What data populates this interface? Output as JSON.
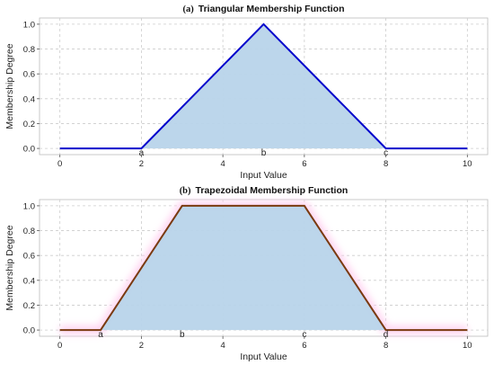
{
  "chart_data": [
    {
      "type": "line",
      "panel_label": "(a)",
      "title": "Triangular Membership Function",
      "xlabel": "Input Value",
      "ylabel": "Membership Degree",
      "xlim": [
        -0.5,
        10.5
      ],
      "ylim": [
        -0.05,
        1.05
      ],
      "xticks": [
        0,
        2,
        4,
        6,
        8,
        10
      ],
      "yticks": [
        0.0,
        0.2,
        0.4,
        0.6,
        0.8,
        1.0
      ],
      "grid": true,
      "x": [
        0,
        2,
        5,
        8,
        10
      ],
      "y": [
        0,
        0,
        1,
        0,
        0
      ],
      "line_color": "#0000cc",
      "fill_color": "#b8d4ea",
      "params": [
        {
          "name": "a",
          "x": 2
        },
        {
          "name": "b",
          "x": 5
        },
        {
          "name": "c",
          "x": 8
        }
      ]
    },
    {
      "type": "line",
      "panel_label": "(b)",
      "title": "Trapezoidal Membership Function",
      "xlabel": "Input Value",
      "ylabel": "Membership Degree",
      "xlim": [
        -0.5,
        10.5
      ],
      "ylim": [
        -0.05,
        1.05
      ],
      "xticks": [
        0,
        2,
        4,
        6,
        8,
        10
      ],
      "yticks": [
        0.0,
        0.2,
        0.4,
        0.6,
        0.8,
        1.0
      ],
      "grid": true,
      "x": [
        0,
        1,
        3,
        6,
        8,
        10
      ],
      "y": [
        0,
        0,
        1,
        1,
        0,
        0
      ],
      "line_color": "#7a3a10",
      "fill_color": "#b8d4ea",
      "glow_color": "#ffd0f0",
      "params": [
        {
          "name": "a",
          "x": 1
        },
        {
          "name": "b",
          "x": 3
        },
        {
          "name": "c",
          "x": 6
        },
        {
          "name": "d",
          "x": 8
        }
      ]
    }
  ]
}
